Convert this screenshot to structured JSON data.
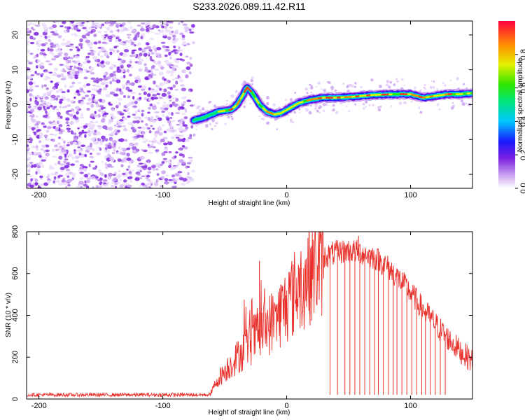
{
  "title": "S233.2026.089.11.42.R11",
  "chart_data": [
    {
      "type": "heatmap",
      "xlabel": "Height of straight line (km)",
      "ylabel": "Frequency (Hz)",
      "xlim": [
        -210,
        150
      ],
      "ylim": [
        -24,
        24
      ],
      "x_ticks": [
        -200,
        -100,
        0,
        100
      ],
      "y_ticks": [
        -20,
        -10,
        0,
        10,
        20
      ],
      "colorbar": {
        "label": "Normalized spectral amplitude",
        "range": [
          0,
          1
        ],
        "ticks": [
          0.0,
          0.2,
          0.4,
          0.6,
          0.8
        ]
      },
      "noise_region_x": [
        -210,
        -75
      ],
      "ridge": {
        "x": [
          -75,
          -65,
          -55,
          -45,
          -40,
          -35,
          -32,
          -28,
          -22,
          -16,
          -10,
          -5,
          0,
          10,
          20,
          30,
          40,
          55,
          70,
          90,
          100,
          110,
          120,
          130,
          140,
          150
        ],
        "freq_hz": [
          -4.5,
          -3.5,
          -2,
          -1.5,
          0,
          3,
          5,
          3.5,
          0,
          -2,
          -2.8,
          -2.5,
          -1.5,
          0.5,
          1.5,
          2,
          2,
          2.3,
          2.8,
          3,
          3,
          2,
          2.5,
          3,
          3,
          3.3
        ]
      }
    },
    {
      "type": "line",
      "xlabel": "Height of straight line (km)",
      "ylabel": "SNR (10 * v/v)",
      "xlim": [
        -210,
        150
      ],
      "ylim": [
        0,
        800
      ],
      "x_ticks": [
        -200,
        -100,
        0,
        100
      ],
      "y_ticks": [
        0,
        200,
        400,
        600,
        800
      ],
      "color": "#e8302a",
      "envelope": {
        "x": [
          -210,
          -70,
          -62,
          -55,
          -40,
          -25,
          -10,
          0,
          10,
          20,
          30,
          40,
          50,
          60,
          70,
          80,
          90,
          100,
          110,
          120,
          130,
          140,
          150
        ],
        "snr": [
          20,
          20,
          20,
          100,
          200,
          300,
          380,
          450,
          540,
          620,
          680,
          700,
          710,
          700,
          680,
          640,
          580,
          510,
          430,
          360,
          290,
          230,
          180
        ]
      },
      "spikes": [
        {
          "x": -22,
          "snr": 660
        },
        {
          "x": 18,
          "snr": 800
        },
        {
          "x": 58,
          "snr": 780
        }
      ],
      "dropouts_x": [
        35,
        41,
        47,
        51,
        55,
        59,
        63,
        67,
        71,
        74,
        78,
        82,
        86,
        89,
        93,
        97,
        101,
        105,
        109,
        112,
        116,
        120,
        124,
        128
      ]
    }
  ]
}
